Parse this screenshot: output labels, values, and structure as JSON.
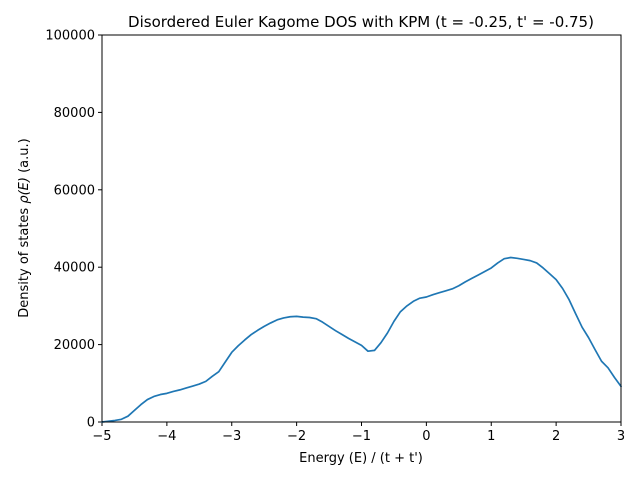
{
  "chart_data": {
    "type": "line",
    "title": "Disordered Euler Kagome DOS with KPM (t = -0.25, t' = -0.75)",
    "xlabel": "Energy (E) / (t + t')",
    "ylabel_prefix": "Density of states ",
    "ylabel_symbol": "ρ(E)",
    "ylabel_suffix": " (a.u.)",
    "xlim": [
      -5,
      3
    ],
    "ylim": [
      0,
      100000
    ],
    "x_ticks": [
      -5,
      -4,
      -3,
      -2,
      -1,
      0,
      1,
      2,
      3
    ],
    "y_ticks": [
      0,
      20000,
      40000,
      60000,
      80000,
      100000
    ],
    "x_tick_labels": [
      "−5",
      "−4",
      "−3",
      "−2",
      "−1",
      "0",
      "1",
      "2",
      "3"
    ],
    "y_tick_labels": [
      "0",
      "20000",
      "40000",
      "60000",
      "80000",
      "100000"
    ],
    "grid": false,
    "series": [
      {
        "color": "#1f77b4",
        "x": [
          -5.0,
          -4.9,
          -4.8,
          -4.7,
          -4.6,
          -4.5,
          -4.4,
          -4.3,
          -4.2,
          -4.1,
          -4.0,
          -3.9,
          -3.8,
          -3.7,
          -3.6,
          -3.5,
          -3.4,
          -3.3,
          -3.2,
          -3.1,
          -3.0,
          -2.9,
          -2.8,
          -2.7,
          -2.6,
          -2.5,
          -2.4,
          -2.3,
          -2.2,
          -2.1,
          -2.0,
          -1.9,
          -1.8,
          -1.7,
          -1.6,
          -1.5,
          -1.4,
          -1.3,
          -1.2,
          -1.1,
          -1.0,
          -0.9,
          -0.8,
          -0.7,
          -0.6,
          -0.5,
          -0.4,
          -0.3,
          -0.2,
          -0.1,
          0.0,
          0.1,
          0.2,
          0.3,
          0.4,
          0.5,
          0.6,
          0.7,
          0.8,
          0.9,
          1.0,
          1.1,
          1.2,
          1.3,
          1.4,
          1.5,
          1.6,
          1.7,
          1.8,
          1.9,
          2.0,
          2.1,
          2.2,
          2.3,
          2.4,
          2.5,
          2.6,
          2.7,
          2.8,
          2.9,
          3.0
        ],
        "y": [
          0,
          200,
          400,
          700,
          1500,
          3000,
          4500,
          5800,
          6600,
          7100,
          7400,
          7900,
          8300,
          8800,
          9300,
          9800,
          10500,
          11800,
          13000,
          15500,
          18000,
          19700,
          21200,
          22600,
          23700,
          24700,
          25600,
          26400,
          26900,
          27200,
          27300,
          27100,
          27000,
          26700,
          25800,
          24700,
          23600,
          22600,
          21600,
          20700,
          19800,
          18300,
          18500,
          20500,
          23000,
          26000,
          28500,
          30000,
          31200,
          32000,
          32300,
          32900,
          33400,
          33900,
          34400,
          35200,
          36200,
          37100,
          38000,
          38900,
          39800,
          41100,
          42200,
          42500,
          42300,
          42000,
          41700,
          41100,
          39800,
          38300,
          36800,
          34500,
          31600,
          28000,
          24500,
          21800,
          18700,
          15700,
          14000,
          11500,
          9200
        ]
      }
    ]
  }
}
